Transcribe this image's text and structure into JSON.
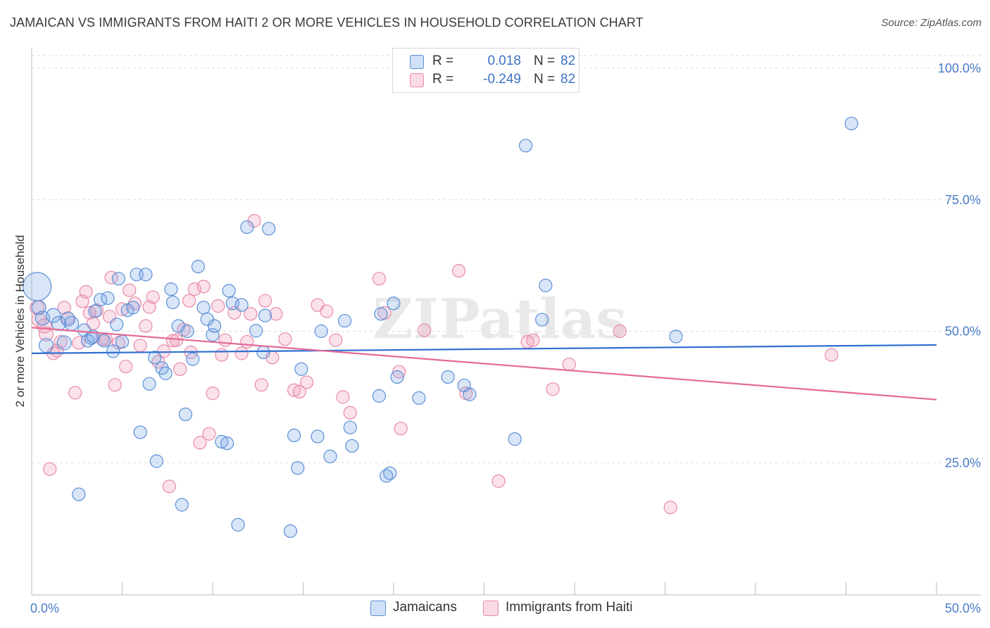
{
  "title": "JAMAICAN VS IMMIGRANTS FROM HAITI 2 OR MORE VEHICLES IN HOUSEHOLD CORRELATION CHART",
  "source": "Source: ZipAtlas.com",
  "watermark": "ZIPatlas",
  "legend": {
    "series1": {
      "r_label": "R =",
      "r_value": "0.018",
      "n_label": "N =",
      "n_value": "82"
    },
    "series2": {
      "r_label": "R =",
      "r_value": "-0.249",
      "n_label": "N =",
      "n_value": "82"
    }
  },
  "bottom_legend": {
    "series1": "Jamaicans",
    "series2": "Immigrants from Haiti"
  },
  "colors": {
    "series1_fill": "rgba(120,165,230,0.28)",
    "series1_stroke": "#5b8fd6",
    "series1_line": "#2e6fd0",
    "series2_fill": "rgba(240,150,180,0.28)",
    "series2_stroke": "#e88aab",
    "series2_line": "#e46a96",
    "axis_text": "#4a7bc8",
    "grid": "#dddddd"
  },
  "chart_data": {
    "type": "scatter",
    "title": "JAMAICAN VS IMMIGRANTS FROM HAITI 2 OR MORE VEHICLES IN HOUSEHOLD CORRELATION CHART",
    "xlabel": "",
    "ylabel": "2 or more Vehicles in Household",
    "xlim": [
      0,
      50
    ],
    "ylim": [
      0,
      105
    ],
    "x_tick_labels": [
      "0.0%",
      "50.0%"
    ],
    "y_ticks": [
      25,
      50,
      75,
      100
    ],
    "y_tick_labels": [
      "25.0%",
      "50.0%",
      "75.0%",
      "100.0%"
    ],
    "grid": "horizontal dashed",
    "legend_position": "top-center",
    "series": [
      {
        "name": "Jamaicans",
        "r": 0.018,
        "n": 82,
        "trend": [
          [
            0,
            45.8
          ],
          [
            50,
            47.4
          ]
        ],
        "points": [
          [
            0.3,
            58.5,
            20
          ],
          [
            0.4,
            54.5,
            10
          ],
          [
            0.6,
            52.5,
            10
          ],
          [
            0.8,
            47.3,
            10
          ],
          [
            1.2,
            53.0,
            10
          ],
          [
            1.5,
            51.5,
            10
          ],
          [
            1.8,
            47.8,
            10
          ],
          [
            2.0,
            52.3,
            10
          ],
          [
            2.2,
            51.5,
            10
          ],
          [
            2.6,
            19.0,
            9
          ],
          [
            2.9,
            50.2,
            9
          ],
          [
            3.1,
            48.2,
            9
          ],
          [
            3.3,
            48.7,
            9
          ],
          [
            3.4,
            49.0,
            9
          ],
          [
            3.5,
            53.8,
            9
          ],
          [
            3.8,
            56.0,
            9
          ],
          [
            4.0,
            48.2,
            9
          ],
          [
            4.2,
            56.3,
            9
          ],
          [
            4.5,
            46.2,
            9
          ],
          [
            4.7,
            51.3,
            9
          ],
          [
            4.8,
            60.0,
            9
          ],
          [
            5.0,
            48.0,
            9
          ],
          [
            5.3,
            54.0,
            9
          ],
          [
            5.6,
            54.5,
            9
          ],
          [
            5.8,
            60.8,
            9
          ],
          [
            6.0,
            30.8,
            9
          ],
          [
            6.3,
            60.8,
            9
          ],
          [
            6.5,
            40.0,
            9
          ],
          [
            6.8,
            45.0,
            9
          ],
          [
            6.9,
            25.3,
            9
          ],
          [
            7.2,
            43.0,
            9
          ],
          [
            7.4,
            42.0,
            9
          ],
          [
            7.7,
            58.0,
            9
          ],
          [
            7.8,
            55.5,
            9
          ],
          [
            8.1,
            51.0,
            9
          ],
          [
            8.3,
            17.0,
            9
          ],
          [
            8.5,
            34.2,
            9
          ],
          [
            8.6,
            50.0,
            9
          ],
          [
            8.9,
            44.7,
            9
          ],
          [
            9.2,
            62.3,
            9
          ],
          [
            9.5,
            54.5,
            9
          ],
          [
            9.7,
            52.3,
            9
          ],
          [
            10.0,
            49.3,
            9
          ],
          [
            10.1,
            51.0,
            9
          ],
          [
            10.5,
            29.0,
            9
          ],
          [
            10.8,
            28.7,
            9
          ],
          [
            10.9,
            57.7,
            9
          ],
          [
            11.1,
            55.3,
            9
          ],
          [
            11.4,
            13.2,
            9
          ],
          [
            11.6,
            55.0,
            9
          ],
          [
            11.9,
            69.8,
            9
          ],
          [
            12.4,
            50.1,
            9
          ],
          [
            12.8,
            46.0,
            9
          ],
          [
            12.9,
            53.0,
            9
          ],
          [
            13.1,
            69.5,
            9
          ],
          [
            14.3,
            12.0,
            9
          ],
          [
            14.5,
            30.2,
            9
          ],
          [
            14.7,
            24.0,
            9
          ],
          [
            14.9,
            42.8,
            9
          ],
          [
            15.8,
            30.0,
            9
          ],
          [
            16.0,
            50.0,
            9
          ],
          [
            16.5,
            26.2,
            9
          ],
          [
            17.3,
            52.0,
            9
          ],
          [
            17.6,
            31.7,
            9
          ],
          [
            17.7,
            28.2,
            9
          ],
          [
            19.2,
            37.7,
            9
          ],
          [
            19.3,
            53.3,
            9
          ],
          [
            19.6,
            22.5,
            9
          ],
          [
            19.8,
            23.0,
            9
          ],
          [
            20.0,
            55.3,
            9
          ],
          [
            20.2,
            41.3,
            9
          ],
          [
            21.4,
            37.3,
            9
          ],
          [
            23.0,
            41.3,
            9
          ],
          [
            23.9,
            39.7,
            9
          ],
          [
            24.2,
            38.0,
            9
          ],
          [
            26.7,
            29.5,
            9
          ],
          [
            27.3,
            85.3,
            9
          ],
          [
            28.2,
            52.2,
            9
          ],
          [
            28.4,
            58.7,
            9
          ],
          [
            35.6,
            49.0,
            9
          ],
          [
            45.3,
            89.5,
            9
          ],
          [
            13.8,
            12.0,
            0
          ]
        ]
      },
      {
        "name": "Immigrants from Haiti",
        "r": -0.249,
        "n": 82,
        "trend": [
          [
            0,
            50.7
          ],
          [
            50,
            37.0
          ]
        ],
        "points": [
          [
            0.3,
            54.5,
            10
          ],
          [
            0.4,
            52.2,
            10
          ],
          [
            0.7,
            51.0,
            10
          ],
          [
            0.8,
            49.5,
            10
          ],
          [
            1.0,
            23.8,
            9
          ],
          [
            1.2,
            45.8,
            9
          ],
          [
            1.4,
            46.3,
            9
          ],
          [
            1.6,
            48.0,
            9
          ],
          [
            1.8,
            54.5,
            9
          ],
          [
            2.0,
            52.5,
            9
          ],
          [
            2.4,
            38.3,
            9
          ],
          [
            2.6,
            47.8,
            9
          ],
          [
            2.8,
            55.7,
            9
          ],
          [
            3.0,
            57.5,
            9
          ],
          [
            3.2,
            53.5,
            9
          ],
          [
            3.4,
            51.5,
            9
          ],
          [
            3.6,
            54.0,
            9
          ],
          [
            3.9,
            48.5,
            9
          ],
          [
            4.1,
            48.5,
            9
          ],
          [
            4.3,
            52.8,
            9
          ],
          [
            4.4,
            60.2,
            9
          ],
          [
            4.6,
            39.8,
            9
          ],
          [
            4.8,
            47.8,
            9
          ],
          [
            5.0,
            54.2,
            9
          ],
          [
            5.2,
            43.3,
            9
          ],
          [
            5.4,
            57.8,
            9
          ],
          [
            5.7,
            55.3,
            9
          ],
          [
            6.0,
            47.3,
            9
          ],
          [
            6.3,
            51.0,
            9
          ],
          [
            6.5,
            54.6,
            9
          ],
          [
            6.7,
            56.5,
            9
          ],
          [
            7.0,
            44.2,
            9
          ],
          [
            7.3,
            46.2,
            9
          ],
          [
            7.6,
            20.5,
            9
          ],
          [
            7.8,
            48.2,
            9
          ],
          [
            8.0,
            48.3,
            9
          ],
          [
            8.2,
            42.8,
            9
          ],
          [
            8.4,
            50.3,
            9
          ],
          [
            8.7,
            55.8,
            9
          ],
          [
            8.8,
            46.0,
            9
          ],
          [
            9.0,
            58.0,
            9
          ],
          [
            9.3,
            28.8,
            9
          ],
          [
            9.5,
            58.5,
            9
          ],
          [
            9.8,
            30.5,
            9
          ],
          [
            10.0,
            38.2,
            9
          ],
          [
            10.3,
            54.8,
            9
          ],
          [
            10.5,
            45.5,
            9
          ],
          [
            10.7,
            48.3,
            9
          ],
          [
            11.2,
            53.5,
            9
          ],
          [
            11.6,
            45.8,
            9
          ],
          [
            11.9,
            48.0,
            9
          ],
          [
            12.1,
            53.3,
            9
          ],
          [
            12.3,
            71.0,
            9
          ],
          [
            12.7,
            39.8,
            9
          ],
          [
            12.9,
            55.8,
            9
          ],
          [
            13.3,
            45.0,
            9
          ],
          [
            13.5,
            53.3,
            9
          ],
          [
            14.0,
            48.5,
            9
          ],
          [
            14.5,
            38.8,
            9
          ],
          [
            14.8,
            38.5,
            9
          ],
          [
            15.2,
            40.3,
            9
          ],
          [
            15.8,
            55.0,
            9
          ],
          [
            16.3,
            53.8,
            9
          ],
          [
            16.8,
            48.3,
            9
          ],
          [
            17.2,
            37.5,
            9
          ],
          [
            17.6,
            34.5,
            9
          ],
          [
            19.2,
            60.0,
            9
          ],
          [
            19.5,
            53.5,
            9
          ],
          [
            20.3,
            42.3,
            9
          ],
          [
            20.4,
            31.5,
            9
          ],
          [
            21.7,
            50.2,
            9
          ],
          [
            23.6,
            61.5,
            9
          ],
          [
            24.0,
            38.2,
            9
          ],
          [
            25.8,
            21.5,
            9
          ],
          [
            27.4,
            48.0,
            9
          ],
          [
            27.7,
            48.3,
            9
          ],
          [
            28.8,
            39.0,
            9
          ],
          [
            29.7,
            43.7,
            9
          ],
          [
            32.5,
            50.0,
            9
          ],
          [
            35.3,
            16.5,
            9
          ],
          [
            44.2,
            45.5,
            9
          ],
          [
            20.2,
            43.0,
            0
          ]
        ]
      }
    ]
  }
}
